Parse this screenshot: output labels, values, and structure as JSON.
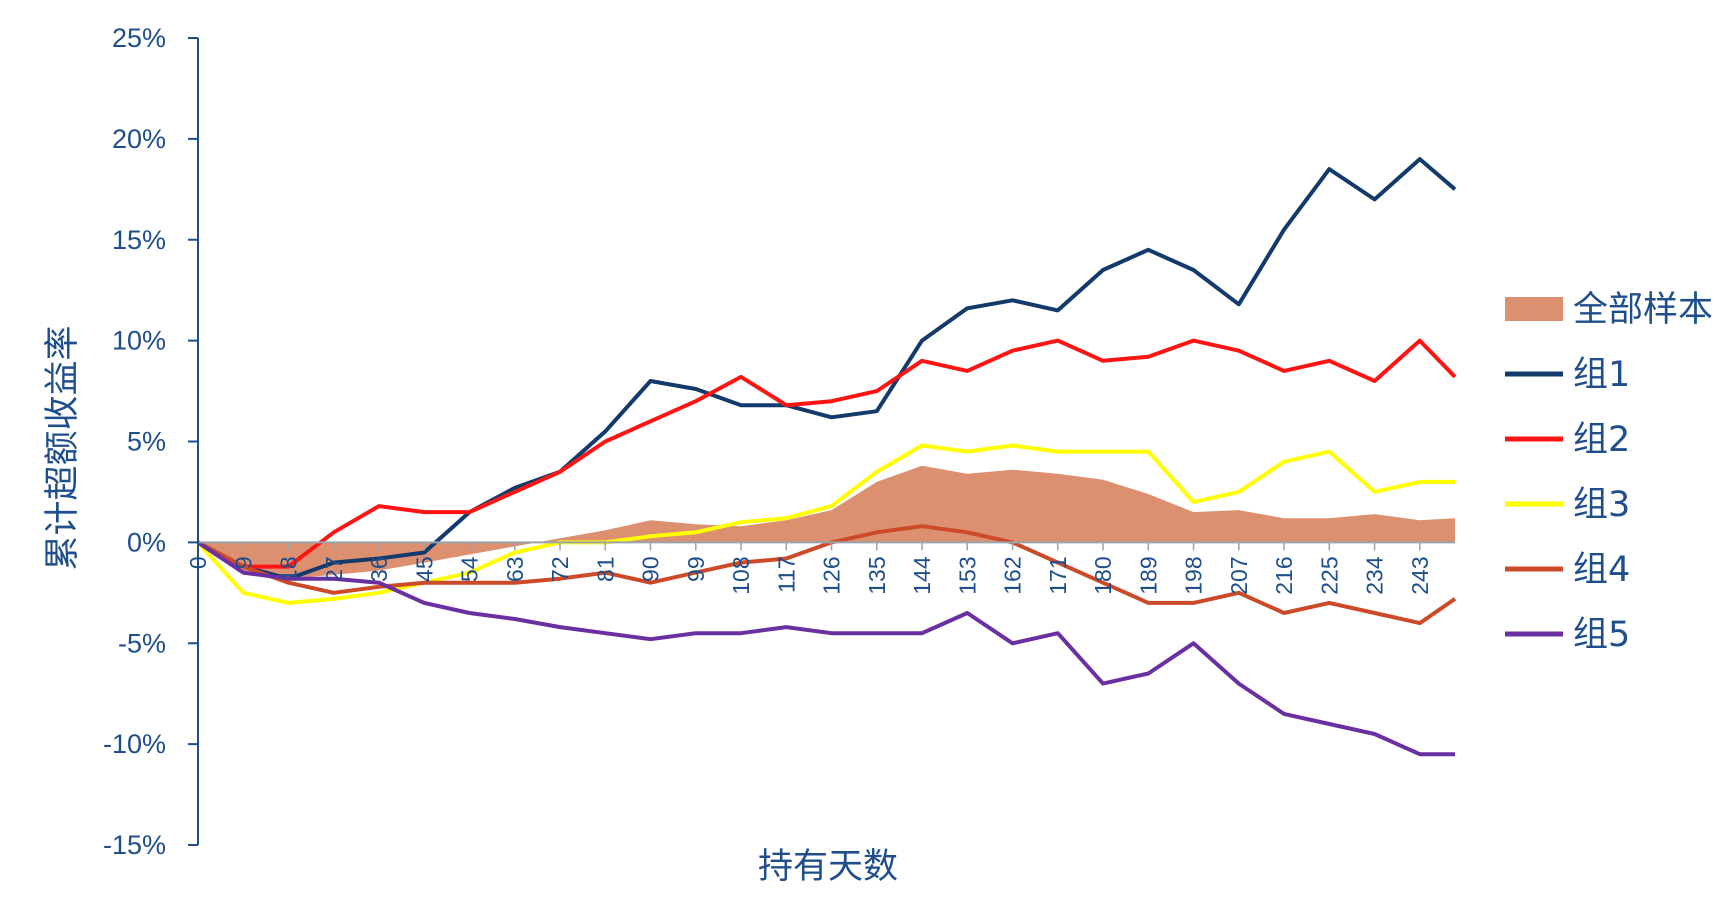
{
  "chart_data": {
    "type": "line",
    "xlabel": "持有天数",
    "ylabel": "累计超额收益率",
    "ylim": [
      -0.15,
      0.25
    ],
    "xlim": [
      0,
      250
    ],
    "y_ticks": [
      -0.15,
      -0.1,
      -0.05,
      0,
      0.05,
      0.1,
      0.15,
      0.2,
      0.25
    ],
    "y_tick_labels": [
      "-15%",
      "-10%",
      "-5%",
      "0%",
      "5%",
      "10%",
      "15%",
      "20%",
      "25%"
    ],
    "x_ticks": [
      0,
      9,
      18,
      27,
      36,
      45,
      54,
      63,
      72,
      81,
      90,
      99,
      108,
      117,
      126,
      135,
      144,
      153,
      162,
      171,
      180,
      189,
      198,
      207,
      216,
      225,
      234,
      243
    ],
    "x_tick_labels": [
      "0",
      "9",
      "18",
      "27",
      "36",
      "45",
      "54",
      "63",
      "72",
      "81",
      "90",
      "99",
      "108",
      "117",
      "126",
      "135",
      "144",
      "153",
      "162",
      "171",
      "180",
      "189",
      "198",
      "207",
      "216",
      "225",
      "234",
      "243"
    ],
    "legend_position": "right",
    "grid": false,
    "series": [
      {
        "name": "全部样本",
        "type": "area",
        "color": "#dc9070",
        "x": [
          0,
          9,
          18,
          27,
          36,
          45,
          54,
          63,
          72,
          81,
          90,
          99,
          108,
          117,
          126,
          135,
          144,
          153,
          162,
          171,
          180,
          189,
          198,
          207,
          216,
          225,
          234,
          243,
          250
        ],
        "y": [
          0,
          -0.015,
          -0.018,
          -0.016,
          -0.014,
          -0.01,
          -0.006,
          -0.002,
          0.002,
          0.006,
          0.011,
          0.009,
          0.008,
          0.011,
          0.016,
          0.03,
          0.038,
          0.034,
          0.036,
          0.034,
          0.031,
          0.024,
          0.015,
          0.016,
          0.012,
          0.012,
          0.014,
          0.011,
          0.012
        ]
      },
      {
        "name": "组1",
        "type": "line",
        "color": "#123a6b",
        "x": [
          0,
          9,
          18,
          27,
          36,
          45,
          54,
          63,
          72,
          81,
          90,
          99,
          108,
          117,
          126,
          135,
          144,
          153,
          162,
          171,
          180,
          189,
          198,
          207,
          216,
          225,
          234,
          243,
          250
        ],
        "y": [
          0,
          -0.012,
          -0.018,
          -0.01,
          -0.008,
          -0.005,
          0.015,
          0.027,
          0.035,
          0.055,
          0.08,
          0.076,
          0.068,
          0.068,
          0.062,
          0.065,
          0.1,
          0.116,
          0.12,
          0.115,
          0.135,
          0.145,
          0.135,
          0.118,
          0.155,
          0.185,
          0.17,
          0.19,
          0.175
        ]
      },
      {
        "name": "组2",
        "type": "line",
        "color": "#ff1414",
        "x": [
          0,
          9,
          18,
          27,
          36,
          45,
          54,
          63,
          72,
          81,
          90,
          99,
          108,
          117,
          126,
          135,
          144,
          153,
          162,
          171,
          180,
          189,
          198,
          207,
          216,
          225,
          234,
          243,
          250
        ],
        "y": [
          0,
          -0.012,
          -0.012,
          0.005,
          0.018,
          0.015,
          0.015,
          0.025,
          0.035,
          0.05,
          0.06,
          0.07,
          0.082,
          0.068,
          0.07,
          0.075,
          0.09,
          0.085,
          0.095,
          0.1,
          0.09,
          0.092,
          0.1,
          0.095,
          0.085,
          0.09,
          0.08,
          0.1,
          0.082
        ]
      },
      {
        "name": "组3",
        "type": "line",
        "color": "#ffff00",
        "x": [
          0,
          9,
          18,
          27,
          36,
          45,
          54,
          63,
          72,
          81,
          90,
          99,
          108,
          117,
          126,
          135,
          144,
          153,
          162,
          171,
          180,
          189,
          198,
          207,
          216,
          225,
          234,
          243,
          250
        ],
        "y": [
          0,
          -0.025,
          -0.03,
          -0.028,
          -0.025,
          -0.02,
          -0.015,
          -0.005,
          0.0,
          0.0,
          0.003,
          0.005,
          0.01,
          0.012,
          0.018,
          0.035,
          0.048,
          0.045,
          0.048,
          0.045,
          0.045,
          0.045,
          0.02,
          0.025,
          0.04,
          0.045,
          0.025,
          0.03,
          0.03
        ]
      },
      {
        "name": "组4",
        "type": "line",
        "color": "#cc4a28",
        "x": [
          0,
          9,
          18,
          27,
          36,
          45,
          54,
          63,
          72,
          81,
          90,
          99,
          108,
          117,
          126,
          135,
          144,
          153,
          162,
          171,
          180,
          189,
          198,
          207,
          216,
          225,
          234,
          243,
          250
        ],
        "y": [
          0,
          -0.012,
          -0.02,
          -0.025,
          -0.022,
          -0.02,
          -0.02,
          -0.02,
          -0.018,
          -0.015,
          -0.02,
          -0.015,
          -0.01,
          -0.008,
          0.0,
          0.005,
          0.008,
          0.005,
          0.0,
          -0.01,
          -0.02,
          -0.03,
          -0.03,
          -0.025,
          -0.035,
          -0.03,
          -0.035,
          -0.04,
          -0.028
        ]
      },
      {
        "name": "组5",
        "type": "line",
        "color": "#6a2fa0",
        "x": [
          0,
          9,
          18,
          27,
          36,
          45,
          54,
          63,
          72,
          81,
          90,
          99,
          108,
          117,
          126,
          135,
          144,
          153,
          162,
          171,
          180,
          189,
          198,
          207,
          216,
          225,
          234,
          243,
          250
        ],
        "y": [
          0,
          -0.015,
          -0.018,
          -0.018,
          -0.02,
          -0.03,
          -0.035,
          -0.038,
          -0.042,
          -0.045,
          -0.048,
          -0.045,
          -0.045,
          -0.042,
          -0.045,
          -0.045,
          -0.045,
          -0.035,
          -0.05,
          -0.045,
          -0.07,
          -0.065,
          -0.05,
          -0.07,
          -0.085,
          -0.09,
          -0.095,
          -0.105,
          -0.105
        ]
      }
    ]
  }
}
